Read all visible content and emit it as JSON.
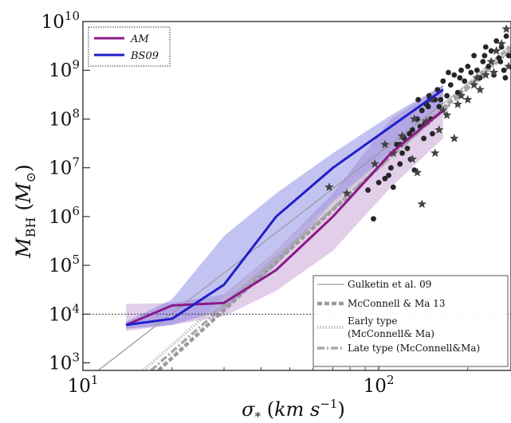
{
  "chart_data": {
    "type": "line",
    "xlabel": "σ* (km s⁻¹)",
    "ylabel": "M_BH (M⊙)",
    "xscale": "log",
    "yscale": "log",
    "xlim": [
      10,
      280
    ],
    "ylim": [
      700,
      10000000000
    ],
    "x_ticks": [
      {
        "value": 10,
        "base": "10",
        "exp": "1"
      },
      {
        "value": 100,
        "base": "10",
        "exp": "2"
      }
    ],
    "y_ticks": [
      {
        "value": 1000,
        "base": "10",
        "exp": "3"
      },
      {
        "value": 10000,
        "base": "10",
        "exp": "4"
      },
      {
        "value": 100000,
        "base": "10",
        "exp": "5"
      },
      {
        "value": 1000000,
        "base": "10",
        "exp": "6"
      },
      {
        "value": 10000000,
        "base": "10",
        "exp": "7"
      },
      {
        "value": 100000000,
        "base": "10",
        "exp": "8"
      },
      {
        "value": 1000000000,
        "base": "10",
        "exp": "9"
      },
      {
        "value": 10000000000,
        "base": "10",
        "exp": "10"
      }
    ],
    "hline": {
      "y": 10000
    },
    "series": [
      {
        "name": "AM",
        "color": "#8b1a89",
        "x": [
          14,
          20,
          30,
          45,
          70,
          110,
          165
        ],
        "y": [
          6000,
          15000,
          17000,
          80000,
          1000000,
          20000000,
          150000000
        ],
        "band_upper": [
          16000,
          17000,
          25000,
          200000,
          3000000,
          100000000,
          500000000
        ],
        "band_lower": [
          4500,
          6000,
          9000,
          30000,
          200000,
          4000000,
          40000000
        ],
        "band_color": "#b98bc7"
      },
      {
        "name": "BS09",
        "color": "#1f1fc8",
        "x": [
          14,
          20,
          30,
          45,
          70,
          110,
          165
        ],
        "y": [
          6000,
          8000,
          40000,
          1000000,
          10000000,
          70000000,
          400000000
        ],
        "band_upper": [
          7000,
          20000,
          400000,
          3000000,
          20000000,
          120000000,
          500000000
        ],
        "band_lower": [
          5000,
          6000,
          12000,
          100000,
          2000000,
          20000000,
          150000000
        ],
        "band_color": "#7070e0"
      }
    ],
    "relations": [
      {
        "name": "Gulketin et al. 09",
        "style": "thin-solid",
        "color": "#9a9a9a",
        "x": [
          10,
          280
        ],
        "y": [
          400,
          2500000000
        ]
      },
      {
        "name": "McConnell & Ma 13",
        "style": "thick-dashed",
        "color": "#9a9a9a",
        "x": [
          18,
          280
        ],
        "y": [
          700,
          3200000000
        ]
      },
      {
        "name": "Early type\n(McConnell& Ma)",
        "style": "thick-dotted",
        "color": "#c4c4c4",
        "x": [
          16,
          280
        ],
        "y": [
          700,
          3200000000
        ]
      },
      {
        "name": "Late type (McConnell&Ma)",
        "style": "dash-dot",
        "color": "#a8a8a8",
        "x": [
          17,
          280
        ],
        "y": [
          700,
          2600000000
        ]
      }
    ],
    "scatter_circles": {
      "color": "#262626",
      "points": [
        [
          92,
          3500000
        ],
        [
          96,
          900000
        ],
        [
          100,
          5000000
        ],
        [
          105,
          6000000
        ],
        [
          108,
          7000000
        ],
        [
          110,
          10000000
        ],
        [
          112,
          4000000
        ],
        [
          115,
          30000000
        ],
        [
          118,
          12000000
        ],
        [
          120,
          20000000
        ],
        [
          122,
          40000000
        ],
        [
          125,
          25000000
        ],
        [
          128,
          15000000
        ],
        [
          130,
          60000000
        ],
        [
          132,
          9000000
        ],
        [
          135,
          100000000
        ],
        [
          138,
          70000000
        ],
        [
          140,
          150000000
        ],
        [
          142,
          40000000
        ],
        [
          145,
          200000000
        ],
        [
          148,
          300000000
        ],
        [
          150,
          100000000
        ],
        [
          152,
          50000000
        ],
        [
          155,
          250000000
        ],
        [
          158,
          400000000
        ],
        [
          160,
          180000000
        ],
        [
          165,
          600000000
        ],
        [
          170,
          300000000
        ],
        [
          175,
          500000000
        ],
        [
          180,
          800000000
        ],
        [
          185,
          350000000
        ],
        [
          190,
          1000000000
        ],
        [
          195,
          600000000
        ],
        [
          200,
          1200000000
        ],
        [
          205,
          900000000
        ],
        [
          210,
          2000000000
        ],
        [
          215,
          1000000000
        ],
        [
          220,
          700000000
        ],
        [
          225,
          1500000000
        ],
        [
          230,
          3000000000
        ],
        [
          235,
          1200000000
        ],
        [
          240,
          2500000000
        ],
        [
          245,
          800000000
        ],
        [
          250,
          4000000000
        ],
        [
          255,
          1800000000
        ],
        [
          260,
          3000000000
        ],
        [
          265,
          1000000000
        ],
        [
          270,
          5000000000
        ],
        [
          275,
          2000000000
        ],
        [
          268,
          700000000
        ],
        [
          258,
          1500000000
        ],
        [
          228,
          2000000000
        ],
        [
          188,
          700000000
        ],
        [
          172,
          900000000
        ],
        [
          162,
          250000000
        ],
        [
          143,
          80000000
        ],
        [
          127,
          50000000
        ],
        [
          118,
          30000000
        ],
        [
          136,
          250000000
        ],
        [
          147,
          180000000
        ]
      ]
    },
    "scatter_stars": {
      "color": "#444444",
      "points": [
        [
          68,
          4000000
        ],
        [
          78,
          3000000
        ],
        [
          105,
          30000000
        ],
        [
          120,
          45000000
        ],
        [
          130,
          15000000
        ],
        [
          135,
          8000000
        ],
        [
          140,
          1800000
        ],
        [
          145,
          90000000
        ],
        [
          155,
          20000000
        ],
        [
          160,
          60000000
        ],
        [
          170,
          120000000
        ],
        [
          180,
          40000000
        ],
        [
          190,
          300000000
        ],
        [
          200,
          250000000
        ],
        [
          210,
          500000000
        ],
        [
          220,
          400000000
        ],
        [
          230,
          800000000
        ],
        [
          240,
          1500000000
        ],
        [
          250,
          2500000000
        ],
        [
          260,
          3500000000
        ],
        [
          270,
          7000000000
        ],
        [
          275,
          1200000000
        ],
        [
          245,
          900000000
        ],
        [
          215,
          700000000
        ],
        [
          185,
          200000000
        ],
        [
          165,
          150000000
        ],
        [
          150,
          250000000
        ],
        [
          132,
          100000000
        ],
        [
          112,
          20000000
        ],
        [
          97,
          12000000
        ]
      ]
    }
  }
}
